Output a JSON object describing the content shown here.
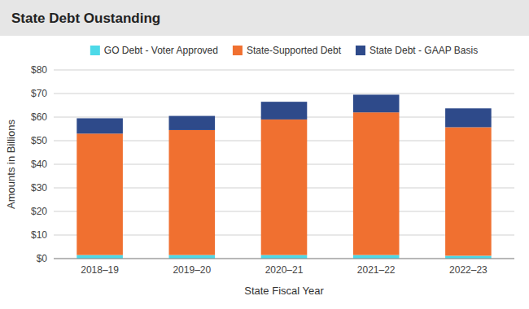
{
  "chart_data": {
    "type": "bar",
    "stacked": true,
    "title": "State Debt Oustanding",
    "xlabel": "State Fiscal Year",
    "ylabel": "Amounts in Billions",
    "categories": [
      "2018–19",
      "2019–20",
      "2020–21",
      "2021–22",
      "2022–23"
    ],
    "series": [
      {
        "name": "GO Debt - Voter Approved",
        "color": "#4DD9E8",
        "values": [
          1.5,
          1.5,
          1.5,
          1.5,
          1.2
        ]
      },
      {
        "name": "State-Supported Debt",
        "color": "#F07030",
        "values": [
          51.5,
          53.0,
          57.5,
          60.5,
          54.5
        ]
      },
      {
        "name": "State Debt - GAAP Basis",
        "color": "#2E4A8A",
        "values": [
          6.5,
          6.0,
          7.5,
          7.5,
          8.0
        ]
      }
    ],
    "ylim": [
      0,
      80
    ],
    "yticks": [
      {
        "value": 0,
        "label": "$0"
      },
      {
        "value": 10,
        "label": "$10"
      },
      {
        "value": 20,
        "label": "$20"
      },
      {
        "value": 30,
        "label": "$30"
      },
      {
        "value": 40,
        "label": "$40"
      },
      {
        "value": 50,
        "label": "$50"
      },
      {
        "value": 60,
        "label": "$60"
      },
      {
        "value": 70,
        "label": "$70"
      },
      {
        "value": 80,
        "label": "$80"
      }
    ],
    "grid": true,
    "legend": "top"
  }
}
